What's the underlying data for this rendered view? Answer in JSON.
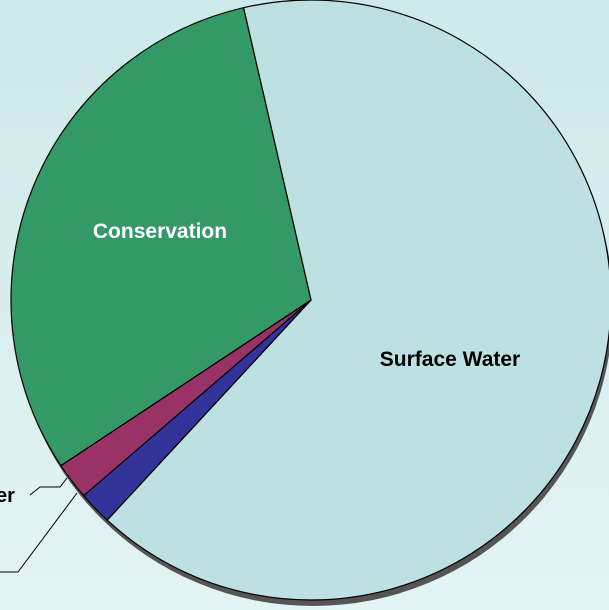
{
  "chart_data": {
    "type": "pie",
    "title": "",
    "slices": [
      {
        "label": "Surface Water",
        "value": 65.5,
        "color": "#bde0e2",
        "label_color": "#000000"
      },
      {
        "label": "",
        "value": 1.8,
        "color": "#333399",
        "label_color": "#000000"
      },
      {
        "label": "",
        "value": 2.0,
        "color": "#993366",
        "label_color": "#000000"
      },
      {
        "label": "Conservation",
        "value": 30.7,
        "color": "#339966",
        "label_color": "#ffffff"
      }
    ],
    "clipped_labels": {
      "slice_3_suffix": "er"
    },
    "legend": "none",
    "outline_color": "#000000",
    "shadow_color": "#555555"
  }
}
